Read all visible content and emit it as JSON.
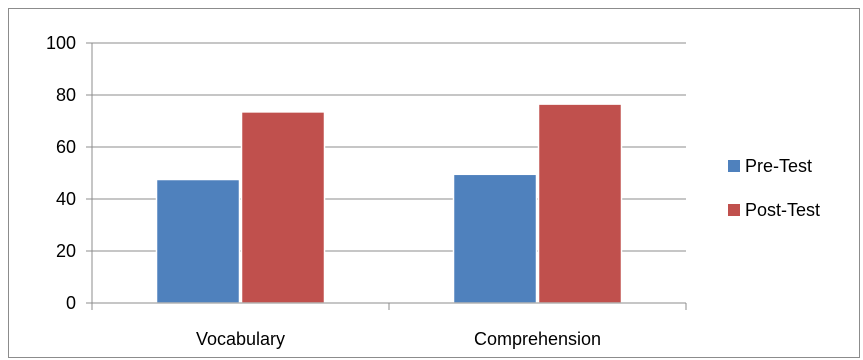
{
  "chart_data": {
    "type": "bar",
    "categories": [
      "Vocabulary",
      "Comprehension"
    ],
    "series": [
      {
        "name": "Pre-Test",
        "values": [
          47.5,
          49.5
        ],
        "color": "#4f81bd"
      },
      {
        "name": "Post-Test",
        "values": [
          73.5,
          76.5
        ],
        "color": "#c0504d"
      }
    ],
    "ylim": [
      0,
      100
    ],
    "yticks": [
      0,
      20,
      40,
      60,
      80,
      100
    ],
    "grid": true,
    "legend_position": "right",
    "title": "",
    "xlabel": "",
    "ylabel": ""
  }
}
